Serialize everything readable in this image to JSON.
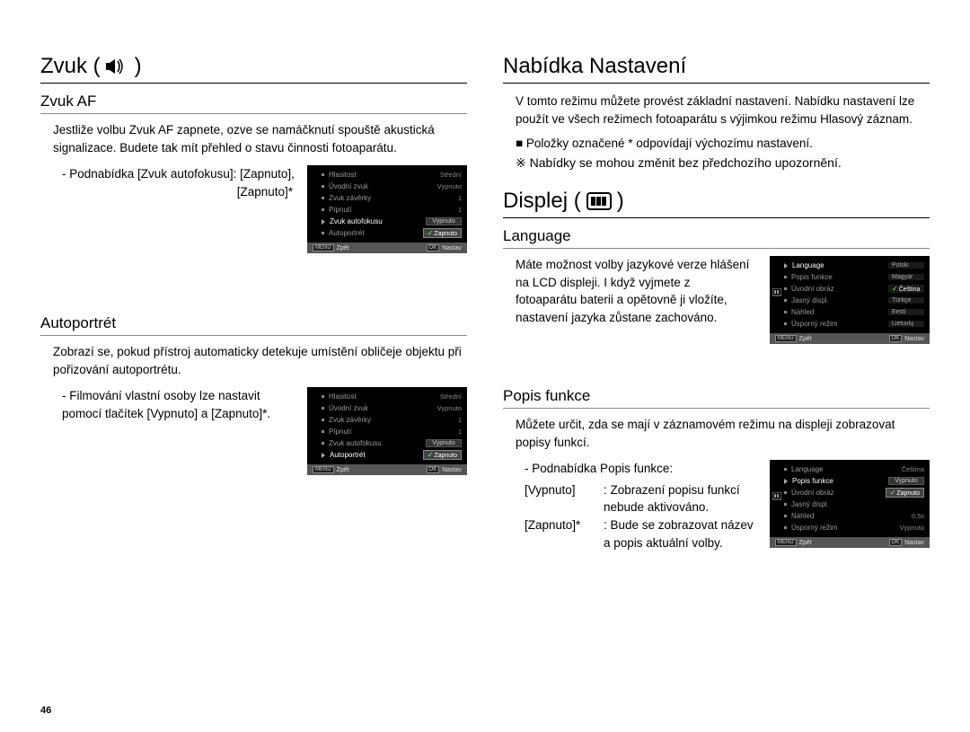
{
  "page_number": "46",
  "left": {
    "main_title": "Zvuk (",
    "main_title_close": ")",
    "section1": {
      "heading": "Zvuk AF",
      "body": "Jestliže volbu Zvuk AF zapnete, ozve se namáčknutí spouště akustická signalizace. Budete tak mít přehled o stavu činnosti fotoaparátu.",
      "sub1": "- Podnabídka [Zvuk autofokusu]: [Zapnuto],",
      "sub2": "[Zapnuto]*",
      "ui": {
        "rows": [
          {
            "l": "Hlasitost",
            "r": "Střední"
          },
          {
            "l": "Úvodní zvuk",
            "r": "Vypnuto"
          },
          {
            "l": "Zvuk závěrky",
            "r": "1"
          },
          {
            "l": "Pípnutí",
            "r": "1"
          },
          {
            "l": "Zvuk autofokusu",
            "box": "Vypnuto",
            "arrow": true
          },
          {
            "l": "Autoportrét",
            "box": "Zapnuto",
            "sel": true,
            "check": true
          }
        ],
        "footer_l": "Zpět",
        "footer_r": "Nastav"
      }
    },
    "section2": {
      "heading": "Autoportrét",
      "body": "Zobrazí se, pokud přístroj automaticky detekuje umístění obličeje objektu při pořizování autoportrétu.",
      "sub1": "- Filmování vlastní osoby lze nastavit",
      "sub2": "pomocí tlačítek [Vypnuto] a [Zapnuto]*.",
      "ui": {
        "rows": [
          {
            "l": "Hlasitost",
            "r": "Střední"
          },
          {
            "l": "Úvodní zvuk",
            "r": "Vypnuto"
          },
          {
            "l": "Zvuk závěrky",
            "r": "1"
          },
          {
            "l": "Pípnutí",
            "r": "1"
          },
          {
            "l": "Zvuk autofokusu",
            "box": "Vypnuto"
          },
          {
            "l": "Autoportrét",
            "box": "Zapnuto",
            "sel": true,
            "check": true,
            "arrow": true
          }
        ],
        "footer_l": "Zpět",
        "footer_r": "Nastav"
      }
    }
  },
  "right": {
    "main_title": "Nabídka Nastavení",
    "intro": "V tomto režimu můžete provést základní nastavení. Nabídku nastavení lze použít ve všech režimech fotoaparátu s výjimkou režimu Hlasový záznam.",
    "bullet": "Položky označené * odpovídají výchozímu nastavení.",
    "note_prefix": "※",
    "note": "Nabídky se mohou změnit bez předchozího upozornění.",
    "displej_title": "Displej (",
    "displej_close": ")",
    "lang": {
      "heading": "Language",
      "body": "Máte možnost volby jazykové verze hlášení na LCD displeji. I když vyjmete z fotoaparátu baterii a opětovně ji vložíte, nastavení jazyka zůstane zachováno.",
      "ui": {
        "rows": [
          {
            "l": "Language",
            "lang": "Polski",
            "arrow": true
          },
          {
            "l": "Popis funkce",
            "lang": "Magyar"
          },
          {
            "l": "Úvodní obráz",
            "lang": "Čeština",
            "sel": true,
            "check": true
          },
          {
            "l": "Jasný displ.",
            "lang": "Türkçe"
          },
          {
            "l": "Náhled",
            "lang": "Eesti"
          },
          {
            "l": "Úsporný režim",
            "lang": "Lietuvių"
          }
        ],
        "footer_l": "Zpět",
        "footer_r": "Nastav"
      }
    },
    "popis": {
      "heading": "Popis funkce",
      "body": "Můžete určit, zda se mají v záznamovém režimu na displeji zobrazovat popisy funkcí.",
      "hdr": "- Podnabídka Popis funkce:",
      "items": [
        {
          "label": "[Vypnuto]",
          "desc": ": Zobrazení popisu funkcí nebude aktivováno."
        },
        {
          "label": "[Zapnuto]*",
          "desc": ": Bude se zobrazovat název a popis aktuální volby."
        }
      ],
      "ui": {
        "rows": [
          {
            "l": "Language",
            "r": "Čeština"
          },
          {
            "l": "Popis funkce",
            "box": "Vypnuto",
            "arrow": true
          },
          {
            "l": "Úvodní obráz",
            "box": "Zapnuto",
            "sel": true,
            "check": true
          },
          {
            "l": "Jasný displ.",
            "r": ""
          },
          {
            "l": "Náhled",
            "r": "0,5s"
          },
          {
            "l": "Úsporný režim",
            "r": "Vypnuto"
          }
        ],
        "footer_l": "Zpět",
        "footer_r": "Nastav"
      }
    }
  }
}
